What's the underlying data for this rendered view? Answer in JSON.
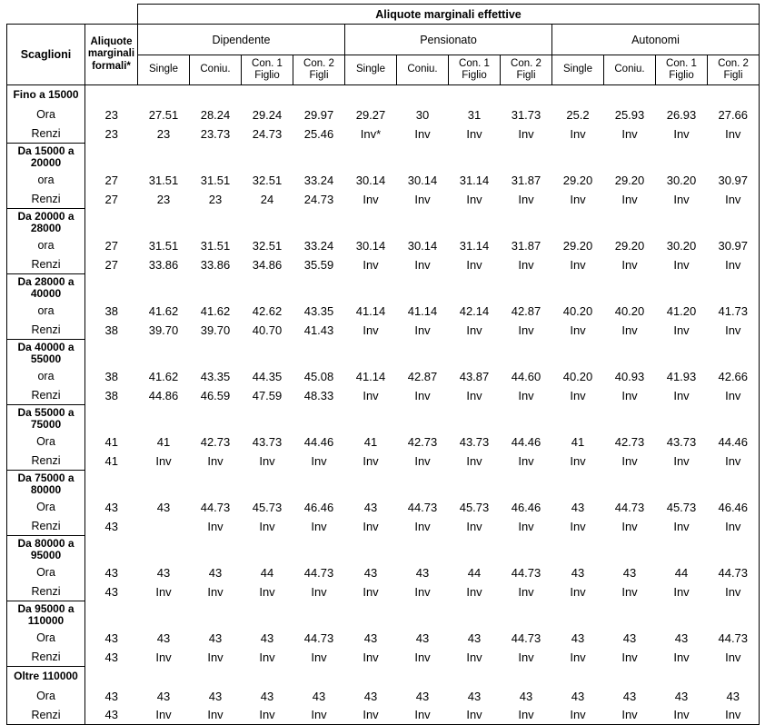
{
  "header": {
    "top_title": "Aliquote marginali effettive",
    "col_scaglioni": "Scaglioni",
    "col_formali": "Aliquote\nmarginali\nformali*",
    "groups": [
      "Dipendente",
      "Pensionato",
      "Autonomi"
    ],
    "subcols": [
      "Single",
      "Coniu.",
      "Con. 1\nFiglio",
      "Con. 2 Figli"
    ]
  },
  "rows": [
    {
      "bracket": "Fino a 15000",
      "lines": [
        {
          "label": "Ora",
          "formali": "23",
          "values": [
            "27.51",
            "28.24",
            "29.24",
            "29.97",
            "29.27",
            "30",
            "31",
            "31.73",
            "25.2",
            "25.93",
            "26.93",
            "27.66"
          ]
        },
        {
          "label": "Renzi",
          "formali": "23",
          "values": [
            "23",
            "23.73",
            "24.73",
            "25.46",
            "Inv*",
            "Inv",
            "Inv",
            "Inv",
            "Inv",
            "Inv",
            "Inv",
            "Inv"
          ]
        }
      ]
    },
    {
      "bracket": "Da 15000 a\n20000",
      "lines": [
        {
          "label": "ora",
          "formali": "27",
          "values": [
            "31.51",
            "31.51",
            "32.51",
            "33.24",
            "30.14",
            "30.14",
            "31.14",
            "31.87",
            "29.20",
            "29.20",
            "30.20",
            "30.97"
          ]
        },
        {
          "label": "Renzi",
          "formali": "27",
          "values": [
            "23",
            "23",
            "24",
            "24.73",
            "Inv",
            "Inv",
            "Inv",
            "Inv",
            "Inv",
            "Inv",
            "Inv",
            "Inv"
          ]
        }
      ]
    },
    {
      "bracket": "Da 20000 a\n28000",
      "lines": [
        {
          "label": "ora",
          "formali": "27",
          "values": [
            "31.51",
            "31.51",
            "32.51",
            "33.24",
            "30.14",
            "30.14",
            "31.14",
            "31.87",
            "29.20",
            "29.20",
            "30.20",
            "30.97"
          ]
        },
        {
          "label": "Renzi",
          "formali": "27",
          "values": [
            "33.86",
            "33.86",
            "34.86",
            "35.59",
            "Inv",
            "Inv",
            "Inv",
            "Inv",
            "Inv",
            "Inv",
            "Inv",
            "Inv"
          ]
        }
      ]
    },
    {
      "bracket": "Da 28000 a\n40000",
      "lines": [
        {
          "label": "ora",
          "formali": "38",
          "values": [
            "41.62",
            "41.62",
            "42.62",
            "43.35",
            "41.14",
            "41.14",
            "42.14",
            "42.87",
            "40.20",
            "40.20",
            "41.20",
            "41.73"
          ]
        },
        {
          "label": "Renzi",
          "formali": "38",
          "values": [
            "39.70",
            "39.70",
            "40.70",
            "41.43",
            "Inv",
            "Inv",
            "Inv",
            "Inv",
            "Inv",
            "Inv",
            "Inv",
            "Inv"
          ]
        }
      ]
    },
    {
      "bracket": "Da 40000 a\n55000",
      "lines": [
        {
          "label": "ora",
          "formali": "38",
          "values": [
            "41.62",
            "43.35",
            "44.35",
            "45.08",
            "41.14",
            "42.87",
            "43.87",
            "44.60",
            "40.20",
            "40.93",
            "41.93",
            "42.66"
          ]
        },
        {
          "label": "Renzi",
          "formali": "38",
          "values": [
            "44.86",
            "46.59",
            "47.59",
            "48.33",
            "Inv",
            "Inv",
            "Inv",
            "Inv",
            "Inv",
            "Inv",
            "Inv",
            "Inv"
          ]
        }
      ]
    },
    {
      "bracket": "Da 55000 a\n75000",
      "lines": [
        {
          "label": "Ora",
          "formali": "41",
          "values": [
            "41",
            "42.73",
            "43.73",
            "44.46",
            "41",
            "42.73",
            "43.73",
            "44.46",
            "41",
            "42.73",
            "43.73",
            "44.46"
          ]
        },
        {
          "label": "Renzi",
          "formali": "41",
          "values": [
            "Inv",
            "Inv",
            "Inv",
            "Inv",
            "Inv",
            "Inv",
            "Inv",
            "Inv",
            "Inv",
            "Inv",
            "Inv",
            "Inv"
          ]
        }
      ]
    },
    {
      "bracket": "Da 75000 a\n80000",
      "lines": [
        {
          "label": "Ora",
          "formali": "43",
          "values": [
            "43",
            "44.73",
            "45.73",
            "46.46",
            "43",
            "44.73",
            "45.73",
            "46.46",
            "43",
            "44.73",
            "45.73",
            "46.46"
          ]
        },
        {
          "label": "Renzi",
          "formali": "43",
          "values": [
            "",
            "Inv",
            "Inv",
            "Inv",
            "Inv",
            "Inv",
            "Inv",
            "Inv",
            "Inv",
            "Inv",
            "Inv",
            "Inv"
          ]
        }
      ]
    },
    {
      "bracket": "Da 80000 a\n95000",
      "lines": [
        {
          "label": "Ora",
          "formali": "43",
          "values": [
            "43",
            "43",
            "44",
            "44.73",
            "43",
            "43",
            "44",
            "44.73",
            "43",
            "43",
            "44",
            "44.73"
          ]
        },
        {
          "label": "Renzi",
          "formali": "43",
          "values": [
            "Inv",
            "Inv",
            "Inv",
            "Inv",
            "Inv",
            "Inv",
            "Inv",
            "Inv",
            "Inv",
            "Inv",
            "Inv",
            "Inv"
          ]
        }
      ]
    },
    {
      "bracket": "Da 95000 a\n110000",
      "lines": [
        {
          "label": "Ora",
          "formali": "43",
          "values": [
            "43",
            "43",
            "43",
            "44.73",
            "43",
            "43",
            "43",
            "44.73",
            "43",
            "43",
            "43",
            "44.73"
          ]
        },
        {
          "label": "Renzi",
          "formali": "43",
          "values": [
            "Inv",
            "Inv",
            "Inv",
            "Inv",
            "Inv",
            "Inv",
            "Inv",
            "Inv",
            "Inv",
            "Inv",
            "Inv",
            "Inv"
          ]
        }
      ]
    },
    {
      "bracket": "Oltre 110000",
      "lines": [
        {
          "label": "Ora",
          "formali": "43",
          "values": [
            "43",
            "43",
            "43",
            "43",
            "43",
            "43",
            "43",
            "43",
            "43",
            "43",
            "43",
            "43"
          ]
        },
        {
          "label": "Renzi",
          "formali": "43",
          "values": [
            "Inv",
            "Inv",
            "Inv",
            "Inv",
            "Inv",
            "Inv",
            "Inv",
            "Inv",
            "Inv",
            "Inv",
            "Inv",
            "Inv"
          ]
        }
      ]
    }
  ]
}
